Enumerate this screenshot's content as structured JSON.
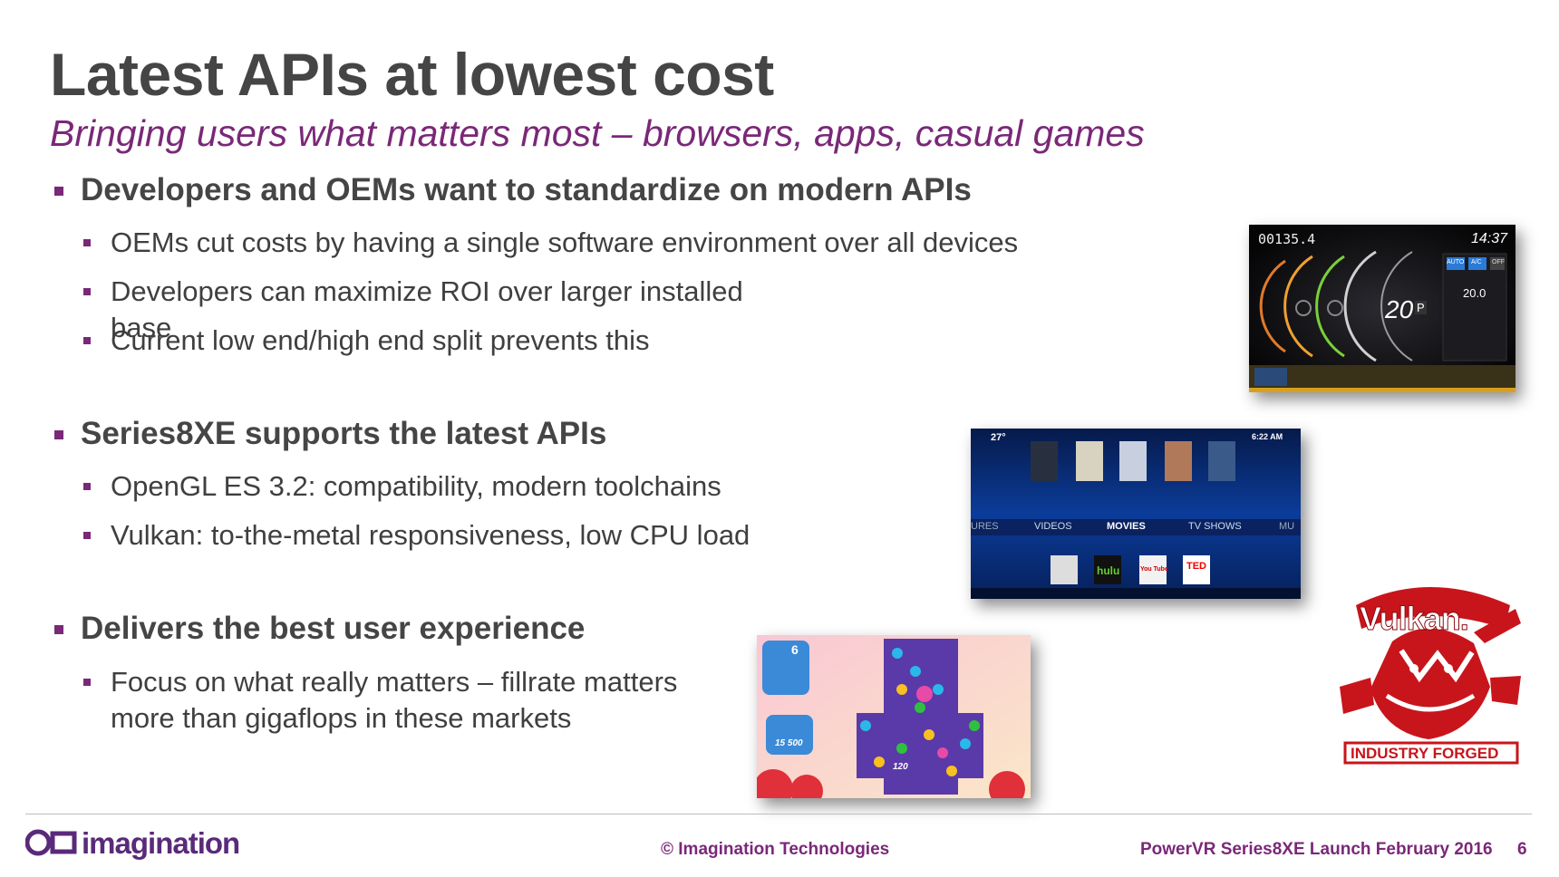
{
  "slide": {
    "title": "Latest APIs at lowest cost",
    "subtitle": "Bringing users what matters most – browsers, apps, casual games",
    "sections": [
      {
        "heading": "Developers and OEMs want to standardize on modern APIs",
        "bullets": [
          "OEMs cut costs by having a single software environment over all devices",
          "Developers can maximize ROI over larger installed base",
          "Current low end/high end split prevents this"
        ]
      },
      {
        "heading": "Series8XE supports the latest APIs",
        "bullets": [
          "OpenGL ES 3.2: compatibility, modern toolchains",
          "Vulkan: to-the-metal responsiveness, low CPU load"
        ]
      },
      {
        "heading": "Delivers the best user experience",
        "bullets": [
          "Focus on what really matters – fillrate matters more than gigaflops in these markets"
        ]
      }
    ]
  },
  "images": {
    "car_dashboard": {
      "odometer": "00135.4",
      "clock": "14:37",
      "speed": "20",
      "gear": "P",
      "temp": "20.0",
      "auto": "AUTO",
      "ac": "A/C",
      "off": "OFF"
    },
    "media_center": {
      "temp": "27°",
      "clock": "6:22 AM",
      "menu": [
        "URES",
        "VIDEOS",
        "MOVIES",
        "TV SHOWS",
        "MU"
      ],
      "apps": [
        "hulu",
        "You Tube",
        "TED"
      ]
    },
    "game": {
      "moves": "6",
      "score": "15 500",
      "count": "120"
    },
    "vulkan_logo": {
      "name": "Vulkan.",
      "tagline": "INDUSTRY FORGED"
    }
  },
  "footer": {
    "logo_text": "imagination",
    "copyright": "© Imagination Technologies",
    "event": "PowerVR Series8XE Launch February 2016",
    "page": "6"
  },
  "colors": {
    "accent": "#7a2878",
    "title": "#454545",
    "text": "#3f3f3f"
  }
}
